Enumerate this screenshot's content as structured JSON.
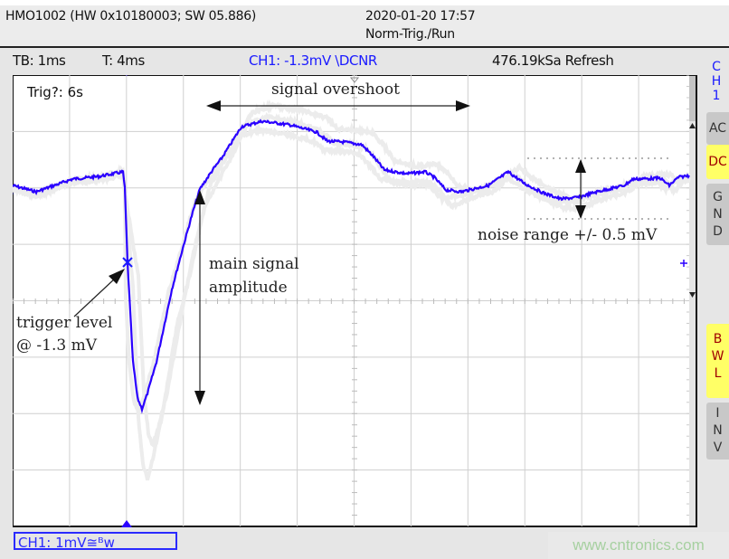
{
  "header": {
    "device": "HMO1002 (HW 0x10180003; SW 05.886)",
    "datetime": "2020-01-20 17:57",
    "mode": "Norm-Trig./Run"
  },
  "info_bar": {
    "timebase": "TB: 1ms",
    "trigger_time": "T: 4ms",
    "trigger_setting": "CH1: -1.3mV \\DCNR",
    "sample_rate": "476.19kSa Refresh"
  },
  "screen": {
    "trig_status": "Trig?: 6s",
    "channel_marker": "1",
    "trace_color": "#2a00ff",
    "ghost_color": "#ececec"
  },
  "annotations": {
    "overshoot": "signal overshoot",
    "amplitude_line1": "main  signal",
    "amplitude_line2": "amplitude",
    "trigger_line1": "trigger  level",
    "trigger_line2": "@ -1.3 mV",
    "noise": "noise range +/- 0.5 mV"
  },
  "side_panel": {
    "channel": [
      "C",
      "H",
      "1"
    ],
    "ac": "AC",
    "dc": "DC",
    "gnd": [
      "G",
      "N",
      "D"
    ],
    "bwl": [
      "B",
      "W",
      "L"
    ],
    "inv": [
      "I",
      "N",
      "V"
    ]
  },
  "footer": {
    "channel_scale": "CH1: 1mV≅ᴮw",
    "watermark": "www.cntronics.com"
  }
}
